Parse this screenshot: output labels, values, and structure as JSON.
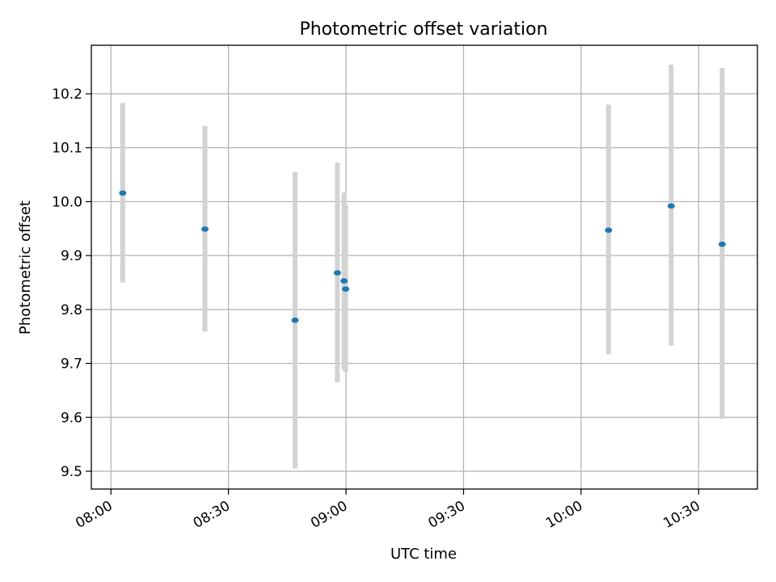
{
  "chart_data": {
    "type": "scatter",
    "title": "Photometric offset variation",
    "xlabel": "UTC time",
    "ylabel": "Photometric offset",
    "x_ticks": [
      "08:00",
      "08:30",
      "09:00",
      "09:30",
      "10:00",
      "10:30"
    ],
    "y_ticks": [
      "9.5",
      "9.6",
      "9.7",
      "9.8",
      "9.9",
      "10.0",
      "10.1",
      "10.2"
    ],
    "xlim": [
      "07:55",
      "10:45"
    ],
    "ylim": [
      9.467,
      10.29
    ],
    "grid": true,
    "points": [
      {
        "x": "08:03",
        "y": 10.016,
        "err_low": 9.85,
        "err_high": 10.183
      },
      {
        "x": "08:24",
        "y": 9.949,
        "err_low": 9.759,
        "err_high": 10.14
      },
      {
        "x": "08:47",
        "y": 9.78,
        "err_low": 9.505,
        "err_high": 10.055
      },
      {
        "x": "08:58",
        "y": 9.868,
        "err_low": 9.665,
        "err_high": 10.072
      },
      {
        "x": "08:59",
        "y": 9.853,
        "err_low": 9.688,
        "err_high": 10.017
      },
      {
        "x": "08:59",
        "y": 9.838,
        "err_low": 9.684,
        "err_high": 9.993
      },
      {
        "x": "10:07",
        "y": 9.947,
        "err_low": 9.717,
        "err_high": 10.18
      },
      {
        "x": "10:23",
        "y": 9.992,
        "err_low": 9.733,
        "err_high": 10.254
      },
      {
        "x": "10:36",
        "y": 9.921,
        "err_low": 9.597,
        "err_high": 10.248
      }
    ],
    "colors": {
      "point": "#1f77b4",
      "errorbar": "#d3d3d3",
      "grid": "#b0b0b0"
    }
  }
}
